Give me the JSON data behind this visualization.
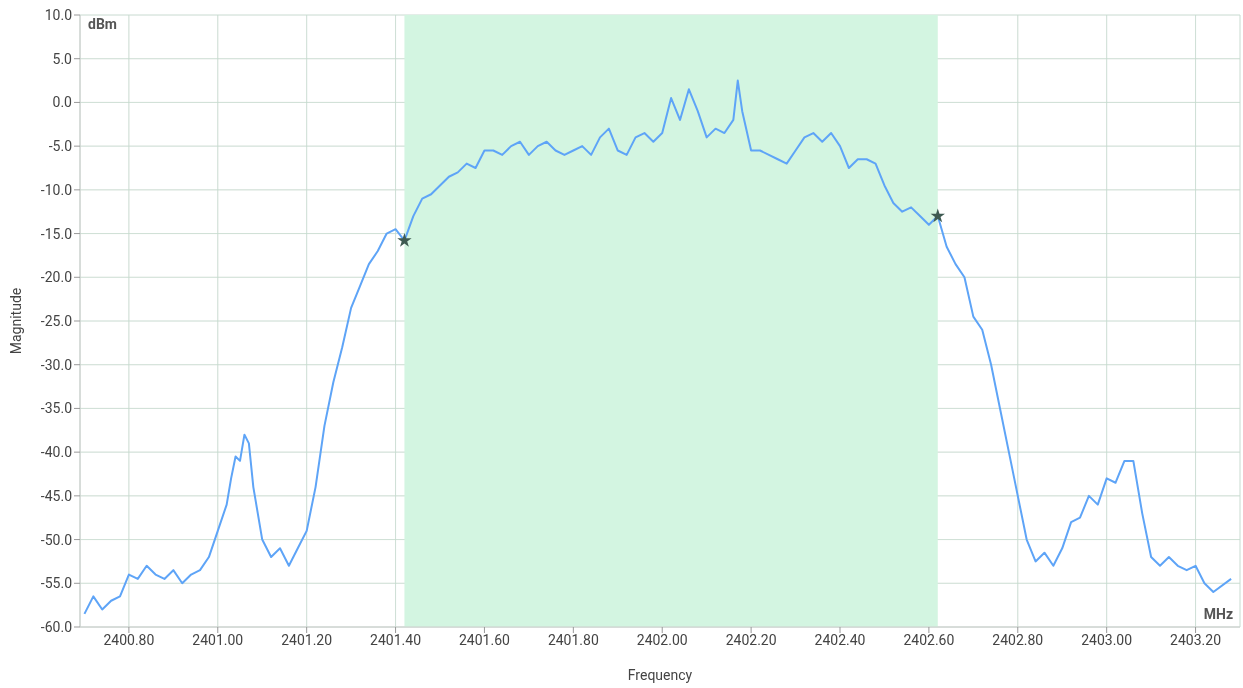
{
  "chart_data": {
    "type": "line",
    "xlabel": "Frequency",
    "ylabel": "Magnitude",
    "annotations": [
      "dBm",
      "MHz"
    ],
    "xlim": [
      2400.69,
      2403.3
    ],
    "xticks": [
      {
        "value": 2400.8,
        "label": "2400.80"
      },
      {
        "value": 2401.0,
        "label": "2401.00"
      },
      {
        "value": 2401.2,
        "label": "2401.20"
      },
      {
        "value": 2401.4,
        "label": "2401.40"
      },
      {
        "value": 2401.6,
        "label": "2401.60"
      },
      {
        "value": 2401.8,
        "label": "2401.80"
      },
      {
        "value": 2402.0,
        "label": "2402.00"
      },
      {
        "value": 2402.2,
        "label": "2402.20"
      },
      {
        "value": 2402.4,
        "label": "2402.40"
      },
      {
        "value": 2402.6,
        "label": "2402.60"
      },
      {
        "value": 2402.8,
        "label": "2402.80"
      },
      {
        "value": 2403.0,
        "label": "2403.00"
      },
      {
        "value": 2403.2,
        "label": "2403.20"
      }
    ],
    "ylim": [
      -60,
      10
    ],
    "yticks": [
      {
        "value": -60,
        "label": "-60.0"
      },
      {
        "value": -55,
        "label": "-55.0"
      },
      {
        "value": -50,
        "label": "-50.0"
      },
      {
        "value": -45,
        "label": "-45.0"
      },
      {
        "value": -40,
        "label": "-40.0"
      },
      {
        "value": -35,
        "label": "-35.0"
      },
      {
        "value": -30,
        "label": "-30.0"
      },
      {
        "value": -25,
        "label": "-25.0"
      },
      {
        "value": -20,
        "label": "-20.0"
      },
      {
        "value": -15,
        "label": "-15.0"
      },
      {
        "value": -10,
        "label": "-10.0"
      },
      {
        "value": -5,
        "label": "-5.0"
      },
      {
        "value": 0,
        "label": "0.0"
      },
      {
        "value": 5,
        "label": "5.0"
      },
      {
        "value": 10,
        "label": "10.0"
      }
    ],
    "grid": true,
    "bands": [
      {
        "axis": "x",
        "from": 2401.42,
        "to": 2402.62,
        "color": "#d3f5e1"
      }
    ],
    "series": [
      {
        "color": "#5ea4f7",
        "marker": "none",
        "x": [
          2400.7,
          2400.72,
          2400.74,
          2400.76,
          2400.78,
          2400.8,
          2400.82,
          2400.84,
          2400.86,
          2400.88,
          2400.9,
          2400.92,
          2400.94,
          2400.96,
          2400.98,
          2401.0,
          2401.02,
          2401.03,
          2401.04,
          2401.05,
          2401.06,
          2401.07,
          2401.08,
          2401.1,
          2401.12,
          2401.14,
          2401.16,
          2401.18,
          2401.2,
          2401.22,
          2401.24,
          2401.26,
          2401.28,
          2401.3,
          2401.32,
          2401.34,
          2401.36,
          2401.38,
          2401.4,
          2401.42,
          2401.44,
          2401.46,
          2401.48,
          2401.5,
          2401.52,
          2401.54,
          2401.56,
          2401.58,
          2401.6,
          2401.62,
          2401.64,
          2401.66,
          2401.68,
          2401.7,
          2401.72,
          2401.74,
          2401.76,
          2401.78,
          2401.8,
          2401.82,
          2401.84,
          2401.86,
          2401.88,
          2401.9,
          2401.92,
          2401.94,
          2401.96,
          2401.98,
          2402.0,
          2402.02,
          2402.04,
          2402.06,
          2402.08,
          2402.1,
          2402.12,
          2402.14,
          2402.16,
          2402.17,
          2402.18,
          2402.2,
          2402.22,
          2402.24,
          2402.26,
          2402.28,
          2402.3,
          2402.32,
          2402.34,
          2402.36,
          2402.38,
          2402.4,
          2402.42,
          2402.44,
          2402.46,
          2402.48,
          2402.5,
          2402.52,
          2402.54,
          2402.56,
          2402.58,
          2402.6,
          2402.62,
          2402.64,
          2402.66,
          2402.68,
          2402.7,
          2402.72,
          2402.74,
          2402.76,
          2402.78,
          2402.8,
          2402.82,
          2402.84,
          2402.86,
          2402.88,
          2402.9,
          2402.92,
          2402.94,
          2402.96,
          2402.98,
          2403.0,
          2403.02,
          2403.04,
          2403.06,
          2403.08,
          2403.1,
          2403.12,
          2403.14,
          2403.16,
          2403.18,
          2403.2,
          2403.22,
          2403.24,
          2403.28
        ],
        "values": [
          -58.5,
          -56.5,
          -58,
          -57,
          -56.5,
          -54,
          -54.5,
          -53,
          -54,
          -54.5,
          -53.5,
          -55,
          -54,
          -53.5,
          -52,
          -49,
          -46,
          -43,
          -40.5,
          -41,
          -38,
          -39,
          -44,
          -50,
          -52,
          -51,
          -53,
          -51,
          -49,
          -44,
          -37,
          -32,
          -28,
          -23.5,
          -21,
          -18.5,
          -17,
          -15,
          -14.5,
          -15.8,
          -13,
          -11,
          -10.5,
          -9.5,
          -8.5,
          -8,
          -7,
          -7.5,
          -5.5,
          -5.5,
          -6,
          -5,
          -4.5,
          -6,
          -5,
          -4.5,
          -5.5,
          -6,
          -5.5,
          -5,
          -6,
          -4,
          -3,
          -5.5,
          -6,
          -4,
          -3.5,
          -4.5,
          -3.5,
          0.5,
          -2,
          1.5,
          -1,
          -4,
          -3,
          -3.5,
          -2,
          2.5,
          -1,
          -5.5,
          -5.5,
          -6,
          -6.5,
          -7,
          -5.5,
          -4,
          -3.5,
          -4.5,
          -3.5,
          -5,
          -7.5,
          -6.5,
          -6.5,
          -7,
          -9.5,
          -11.5,
          -12.5,
          -12,
          -13,
          -14,
          -13,
          -16.5,
          -18.5,
          -20,
          -24.5,
          -26,
          -30,
          -35,
          -40,
          -45,
          -50,
          -52.5,
          -51.5,
          -53,
          -51,
          -48,
          -47.5,
          -45,
          -46,
          -43,
          -43.5,
          -41,
          -41,
          -47,
          -52,
          -53,
          -52,
          -53,
          -53.5,
          -53,
          -55,
          -56,
          -54.5
        ]
      },
      {
        "type": "scatter",
        "color": "#3e5a52",
        "marker": "star",
        "x": [
          2401.42,
          2402.62
        ],
        "values": [
          -15.8,
          -13
        ]
      }
    ]
  }
}
